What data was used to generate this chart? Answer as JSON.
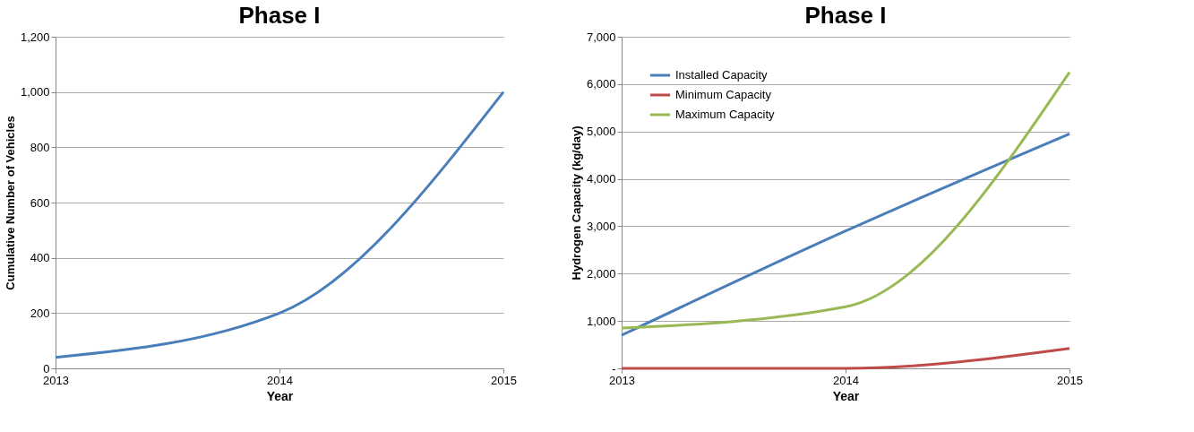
{
  "chart_data": [
    {
      "type": "line",
      "title": "Phase I",
      "xlabel": "Year",
      "ylabel": "Cumulative Number of Vehicles",
      "x": [
        2013,
        2014,
        2015
      ],
      "xlim": [
        2013,
        2015
      ],
      "xticks": [
        2013,
        2014,
        2015
      ],
      "ylim": [
        0,
        1200
      ],
      "yticks": [
        0,
        200,
        400,
        600,
        800,
        {
          "value": 1000,
          "label": "1,000"
        },
        {
          "value": 1200,
          "label": "1,200"
        }
      ],
      "grid": "y",
      "legend": false,
      "series": [
        {
          "color": "#4a7ebb",
          "values": [
            40,
            200,
            1000
          ]
        }
      ]
    },
    {
      "type": "line",
      "title": "Phase I",
      "xlabel": "Year",
      "ylabel": "Hydrogen Capacity (kg/day)",
      "x": [
        2013,
        2014,
        2015
      ],
      "xlim": [
        2013,
        2015
      ],
      "xticks": [
        2013,
        2014,
        2015
      ],
      "ylim": [
        0,
        7000
      ],
      "yticks": [
        {
          "value": 0,
          "label": "-"
        },
        {
          "value": 1000,
          "label": "1,000"
        },
        {
          "value": 2000,
          "label": "2,000"
        },
        {
          "value": 3000,
          "label": "3,000"
        },
        {
          "value": 4000,
          "label": "4,000"
        },
        {
          "value": 5000,
          "label": "5,000"
        },
        {
          "value": 6000,
          "label": "6,000"
        },
        {
          "value": 7000,
          "label": "7,000"
        }
      ],
      "grid": "y",
      "legend": "top left",
      "series": [
        {
          "name": "Installed Capacity",
          "color": "#4a7ebb",
          "values": [
            700,
            2900,
            4950
          ]
        },
        {
          "name": "Minimum Capacity",
          "color": "#be4b48",
          "values": [
            0,
            0,
            420
          ]
        },
        {
          "name": "Maximum Capacity",
          "color": "#98b954",
          "values": [
            850,
            1300,
            6250
          ]
        }
      ]
    }
  ]
}
